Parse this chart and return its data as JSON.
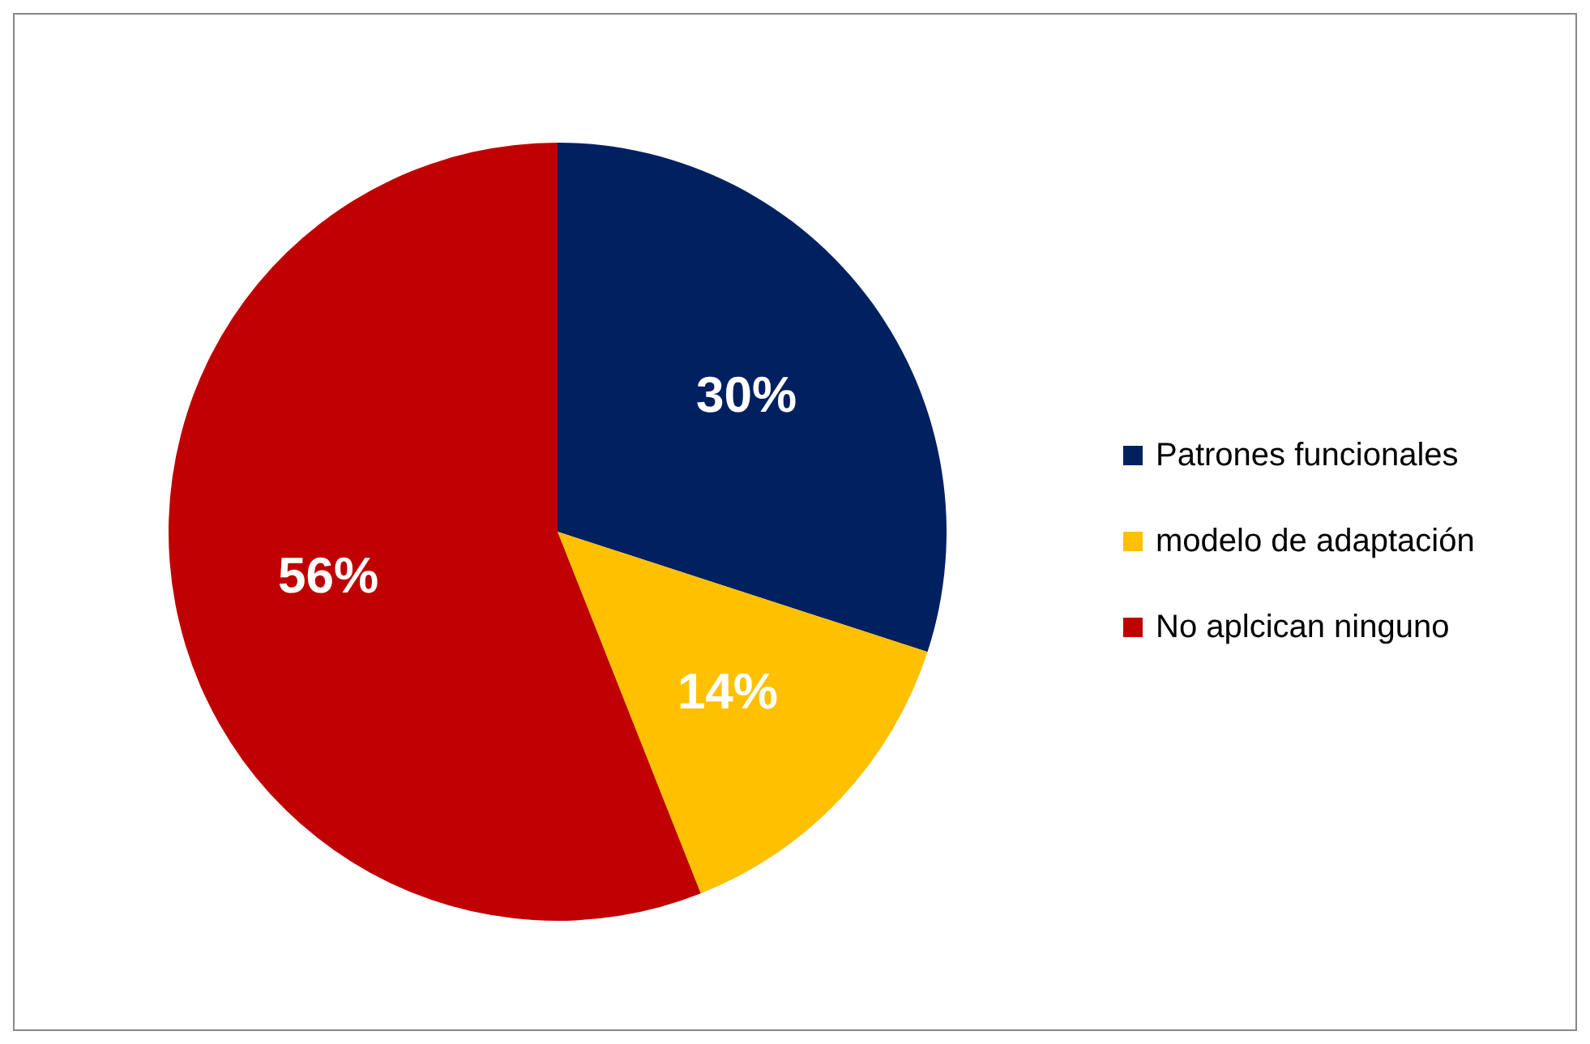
{
  "chart_data": {
    "type": "pie",
    "categories": [
      "Patrones funcionales",
      "modelo de adaptación",
      "No aplcican ninguno"
    ],
    "values": [
      30,
      14,
      56
    ],
    "colors": [
      "#002060",
      "#ffc000",
      "#c00000"
    ],
    "value_labels": [
      "30%",
      "14%",
      "56%"
    ],
    "legend": "right"
  }
}
